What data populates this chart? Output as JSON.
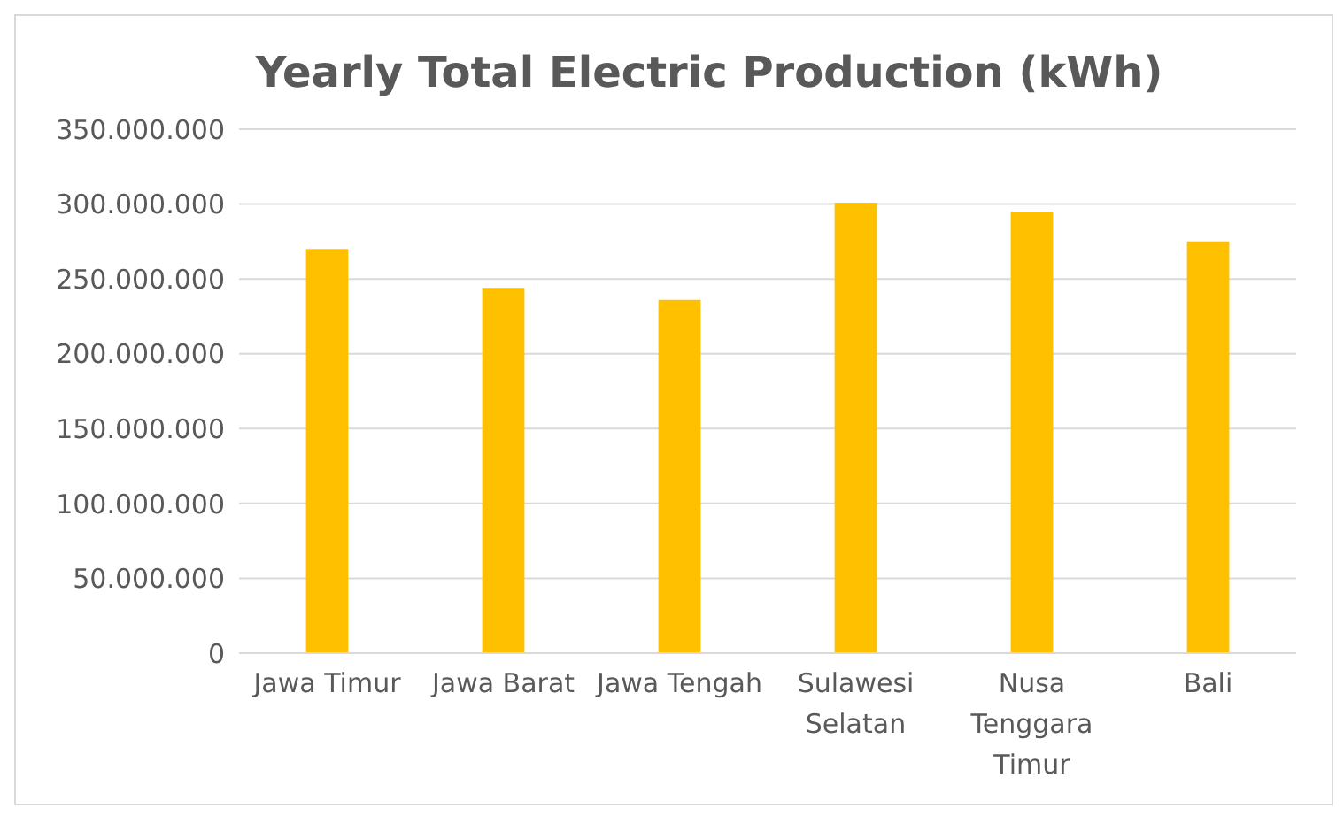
{
  "chart_data": {
    "type": "bar",
    "title": "Yearly Total Electric Production (kWh)",
    "categories": [
      "Jawa Timur",
      "Jawa Barat",
      "Jawa Tengah",
      "Sulawesi Selatan",
      "Nusa Tenggara Timur",
      "Bali"
    ],
    "series": [
      {
        "color": "#ffc000",
        "values": [
          270000000,
          244000000,
          236000000,
          301000000,
          295000000,
          275000000
        ]
      }
    ],
    "ylim": [
      0,
      350000000
    ],
    "yticks": [
      {
        "value": 0,
        "label": "0"
      },
      {
        "value": 50000000,
        "label": "50.000.000"
      },
      {
        "value": 100000000,
        "label": "100.000.000"
      },
      {
        "value": 150000000,
        "label": "150.000.000"
      },
      {
        "value": 200000000,
        "label": "200.000.000"
      },
      {
        "value": 250000000,
        "label": "250.000.000"
      },
      {
        "value": 300000000,
        "label": "300.000.000"
      },
      {
        "value": 350000000,
        "label": "350.000.000"
      }
    ],
    "grid": "y",
    "legend": false
  }
}
